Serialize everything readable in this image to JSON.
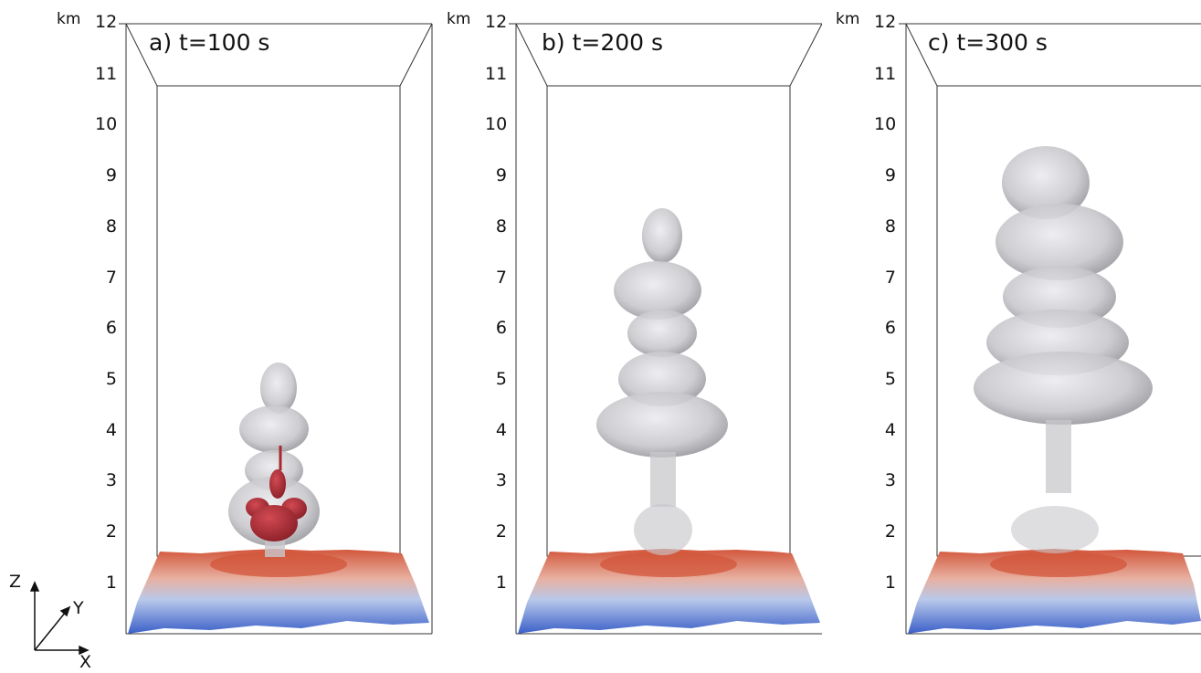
{
  "axis_unit": "km",
  "z_ticks": [
    "12",
    "11",
    "10",
    "9",
    "8",
    "7",
    "6",
    "5",
    "4",
    "3",
    "2",
    "1"
  ],
  "panels": [
    {
      "title": "a) t=100 s"
    },
    {
      "title": "b) t=200 s"
    },
    {
      "title": "c) t=300 s"
    }
  ],
  "axes_icon": {
    "z": "Z",
    "y": "Y",
    "x": "X"
  },
  "colors": {
    "terrain_low": "#3a5fc8",
    "terrain_mid": "#c8d2e8",
    "terrain_high": "#d2553a",
    "plume_gray": "#c8c8cc",
    "plume_core": "#b8343c"
  }
}
